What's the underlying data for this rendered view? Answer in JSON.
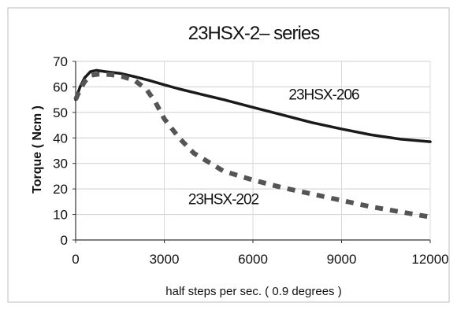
{
  "chart_data": {
    "type": "line",
    "title": "23HSX-2– series",
    "xlabel": "half steps per sec. ( 0.9 degrees )",
    "ylabel": "Torque  ( Ncm )",
    "xlim": [
      0,
      12000
    ],
    "ylim": [
      0,
      70
    ],
    "xticks": [
      "0",
      "3000",
      "6000",
      "9000",
      "12000"
    ],
    "yticks": [
      "0",
      "10",
      "20",
      "30",
      "40",
      "50",
      "60",
      "70"
    ],
    "grid": true,
    "series": [
      {
        "name": "23HSX-206",
        "style": "solid",
        "color": "#1a1a1a",
        "x": [
          0,
          150,
          300,
          500,
          700,
          1000,
          1500,
          2000,
          2500,
          3000,
          3500,
          4000,
          5000,
          6000,
          7000,
          8000,
          9000,
          10000,
          11000,
          12000
        ],
        "y": [
          55,
          60,
          63.5,
          66,
          66.5,
          66,
          65.3,
          64,
          62.5,
          60.8,
          59.2,
          57.8,
          55,
          52,
          49,
          46,
          43.5,
          41.2,
          39.5,
          38.5
        ]
      },
      {
        "name": "23HSX-202",
        "style": "dashed",
        "color": "#555555",
        "x": [
          0,
          150,
          300,
          500,
          800,
          1200,
          1600,
          2000,
          2400,
          2700,
          3000,
          3500,
          4000,
          5000,
          6000,
          7000,
          8000,
          9000,
          10000,
          11000,
          12000
        ],
        "y": [
          55,
          59,
          62,
          64.5,
          65,
          64.8,
          64,
          62.5,
          59,
          54,
          47.5,
          40,
          34,
          27,
          23.5,
          20.5,
          18,
          15.5,
          13,
          11,
          9
        ]
      }
    ],
    "annotations": [
      {
        "text": "23HSX-206",
        "series": 0,
        "x": 8400,
        "y": 55
      },
      {
        "text": "23HSX-202",
        "series": 1,
        "x": 5000,
        "y": 14
      }
    ]
  }
}
